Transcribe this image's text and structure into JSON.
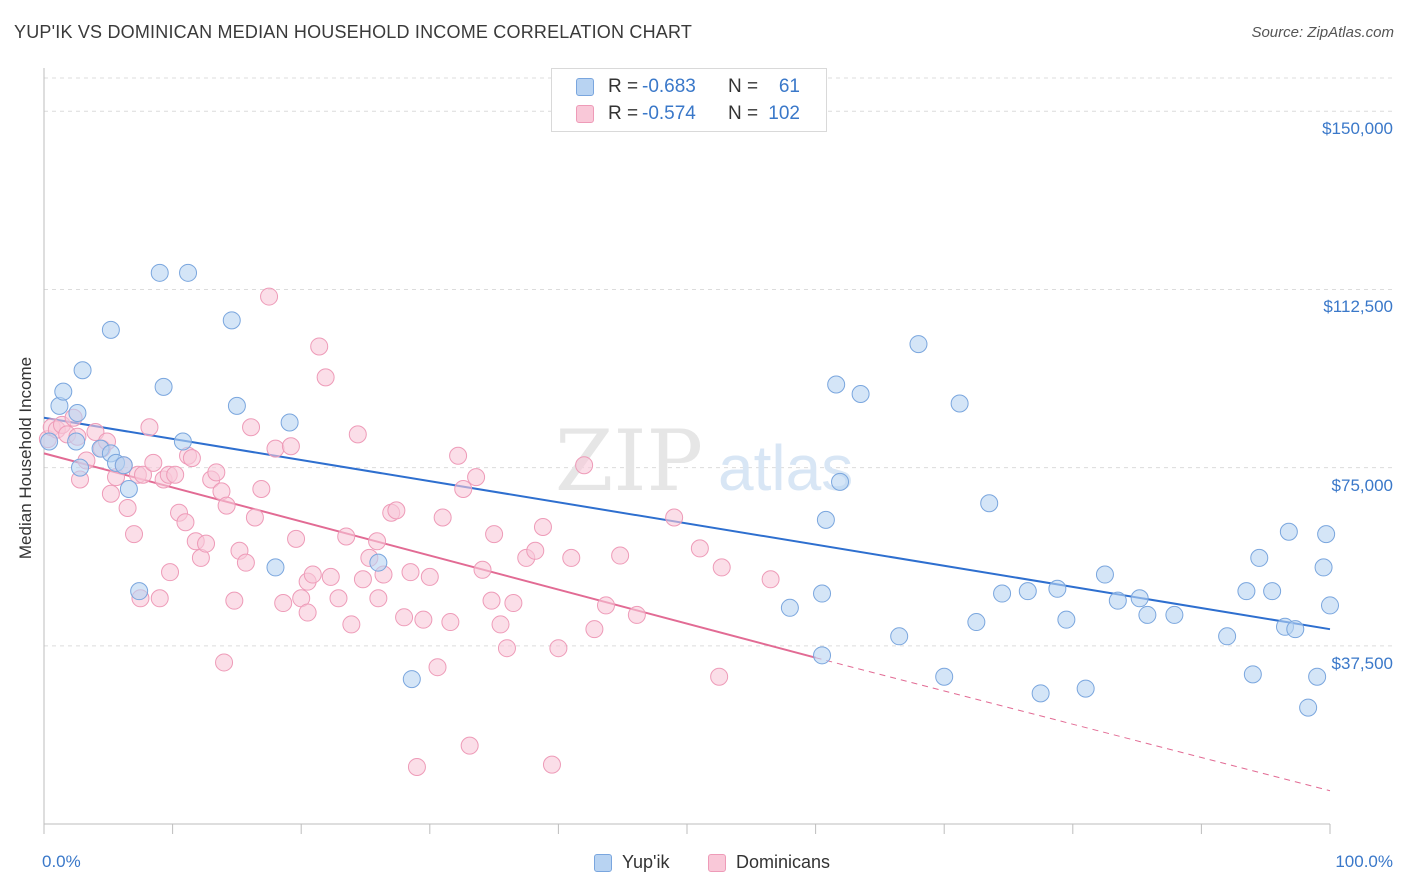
{
  "title": "YUP'IK VS DOMINICAN MEDIAN HOUSEHOLD INCOME CORRELATION CHART",
  "source": "Source: ZipAtlas.com",
  "watermark": {
    "zip": "ZIP",
    "atlas": "atlas"
  },
  "legend": {
    "rows": [
      {
        "r_label": "R =",
        "r_value": "-0.683",
        "n_label": "N =",
        "n_value": "61"
      },
      {
        "r_label": "R =",
        "r_value": "-0.574",
        "n_label": "N =",
        "n_value": "102"
      }
    ]
  },
  "bottom_legend": [
    "Yup'ik",
    "Dominicans"
  ],
  "colors": {
    "yupik_fill": "#b8d3f2",
    "yupik_stroke": "#7aa6de",
    "yupik_line": "#2e6fcf",
    "dom_fill": "#f9c8d8",
    "dom_stroke": "#ee9bb8",
    "dom_line": "#e26b94",
    "grid": "#dcdcdc",
    "axis_text": "#3a78c9"
  },
  "chart_data": {
    "type": "scatter",
    "title": "YUP'IK VS DOMINICAN MEDIAN HOUSEHOLD INCOME CORRELATION CHART",
    "xlabel": "",
    "ylabel": "Median Household Income",
    "xlim": [
      0,
      100
    ],
    "ylim": [
      0,
      157000
    ],
    "x_tick_labels": [
      "0.0%",
      "100.0%"
    ],
    "y_ticks": [
      37500,
      75000,
      112500,
      150000
    ],
    "y_tick_labels": [
      "$37,500",
      "$75,000",
      "$112,500",
      "$150,000"
    ],
    "grid": true,
    "legend_position": "top-center",
    "series": [
      {
        "name": "Yup'ik",
        "trend": {
          "x": [
            0,
            100
          ],
          "y": [
            85500,
            41000
          ],
          "dashed_extension": false
        },
        "points": [
          [
            0.4,
            80500
          ],
          [
            1.2,
            88000
          ],
          [
            1.5,
            91000
          ],
          [
            2.6,
            86500
          ],
          [
            2.5,
            80500
          ],
          [
            3.0,
            95500
          ],
          [
            2.8,
            75000
          ],
          [
            4.4,
            79000
          ],
          [
            5.2,
            78000
          ],
          [
            5.6,
            76000
          ],
          [
            6.6,
            70500
          ],
          [
            6.2,
            75500
          ],
          [
            5.2,
            104000
          ],
          [
            7.4,
            49000
          ],
          [
            9.0,
            116000
          ],
          [
            9.3,
            92000
          ],
          [
            11.2,
            116000
          ],
          [
            14.6,
            106000
          ],
          [
            10.8,
            80500
          ],
          [
            15.0,
            88000
          ],
          [
            18.0,
            54000
          ],
          [
            19.1,
            84500
          ],
          [
            26.0,
            55000
          ],
          [
            28.6,
            30500
          ],
          [
            58.0,
            45500
          ],
          [
            60.5,
            35500
          ],
          [
            60.5,
            48500
          ],
          [
            60.8,
            64000
          ],
          [
            61.6,
            92500
          ],
          [
            61.9,
            72000
          ],
          [
            63.5,
            90500
          ],
          [
            66.5,
            39500
          ],
          [
            68.0,
            101000
          ],
          [
            70.0,
            31000
          ],
          [
            71.2,
            88500
          ],
          [
            72.5,
            42500
          ],
          [
            73.5,
            67500
          ],
          [
            74.5,
            48500
          ],
          [
            76.5,
            49000
          ],
          [
            77.5,
            27500
          ],
          [
            78.8,
            49500
          ],
          [
            79.5,
            43000
          ],
          [
            81.0,
            28500
          ],
          [
            82.5,
            52500
          ],
          [
            83.5,
            47000
          ],
          [
            85.2,
            47500
          ],
          [
            85.8,
            44000
          ],
          [
            87.9,
            44000
          ],
          [
            92.0,
            39500
          ],
          [
            93.5,
            49000
          ],
          [
            94.0,
            31500
          ],
          [
            94.5,
            56000
          ],
          [
            95.5,
            49000
          ],
          [
            96.5,
            41500
          ],
          [
            96.8,
            61500
          ],
          [
            97.3,
            41000
          ],
          [
            98.3,
            24500
          ],
          [
            99.0,
            31000
          ],
          [
            99.5,
            54000
          ],
          [
            99.7,
            61000
          ],
          [
            100.0,
            46000
          ]
        ]
      },
      {
        "name": "Dominicans",
        "trend": {
          "x": [
            0,
            60
          ],
          "y": [
            78000,
            35000
          ],
          "dashed_extension": true,
          "dashed_end": [
            100,
            7000
          ]
        },
        "points": [
          [
            0.3,
            81000
          ],
          [
            0.6,
            83500
          ],
          [
            1.0,
            83000
          ],
          [
            1.4,
            84000
          ],
          [
            1.8,
            82000
          ],
          [
            2.3,
            85500
          ],
          [
            2.6,
            81500
          ],
          [
            2.8,
            72500
          ],
          [
            3.3,
            76500
          ],
          [
            4.0,
            82500
          ],
          [
            4.5,
            79000
          ],
          [
            4.9,
            80500
          ],
          [
            5.2,
            69500
          ],
          [
            5.6,
            73000
          ],
          [
            6.2,
            75500
          ],
          [
            6.5,
            66500
          ],
          [
            7.0,
            61000
          ],
          [
            7.3,
            73500
          ],
          [
            7.7,
            73500
          ],
          [
            8.2,
            83500
          ],
          [
            8.5,
            76000
          ],
          [
            9.0,
            47500
          ],
          [
            9.3,
            72500
          ],
          [
            9.7,
            73500
          ],
          [
            10.2,
            73500
          ],
          [
            10.5,
            65500
          ],
          [
            11.0,
            63500
          ],
          [
            11.2,
            77500
          ],
          [
            11.5,
            77000
          ],
          [
            11.8,
            59500
          ],
          [
            12.2,
            56000
          ],
          [
            12.6,
            59000
          ],
          [
            13.0,
            72500
          ],
          [
            13.4,
            74000
          ],
          [
            13.8,
            70000
          ],
          [
            14.2,
            67000
          ],
          [
            14.8,
            47000
          ],
          [
            15.2,
            57500
          ],
          [
            15.7,
            55000
          ],
          [
            16.1,
            83500
          ],
          [
            16.4,
            64500
          ],
          [
            16.9,
            70500
          ],
          [
            17.5,
            111000
          ],
          [
            18.0,
            79000
          ],
          [
            18.6,
            46500
          ],
          [
            19.2,
            79500
          ],
          [
            19.6,
            60000
          ],
          [
            20.0,
            47500
          ],
          [
            20.5,
            51000
          ],
          [
            20.9,
            52500
          ],
          [
            21.4,
            100500
          ],
          [
            21.9,
            94000
          ],
          [
            22.3,
            52000
          ],
          [
            22.9,
            47500
          ],
          [
            23.5,
            60500
          ],
          [
            23.9,
            42000
          ],
          [
            24.4,
            82000
          ],
          [
            24.8,
            51500
          ],
          [
            25.3,
            56000
          ],
          [
            25.9,
            59500
          ],
          [
            26.4,
            52500
          ],
          [
            27.0,
            65500
          ],
          [
            27.4,
            66000
          ],
          [
            28.0,
            43500
          ],
          [
            28.5,
            53000
          ],
          [
            29.0,
            12000
          ],
          [
            29.5,
            43000
          ],
          [
            30.0,
            52000
          ],
          [
            30.6,
            33000
          ],
          [
            31.0,
            64500
          ],
          [
            31.6,
            42500
          ],
          [
            32.2,
            77500
          ],
          [
            32.6,
            70500
          ],
          [
            33.1,
            16500
          ],
          [
            33.6,
            73000
          ],
          [
            34.1,
            53500
          ],
          [
            34.8,
            47000
          ],
          [
            35.5,
            42000
          ],
          [
            36.0,
            37000
          ],
          [
            36.5,
            46500
          ],
          [
            37.5,
            56000
          ],
          [
            38.2,
            57500
          ],
          [
            38.8,
            62500
          ],
          [
            39.5,
            12500
          ],
          [
            40.0,
            37000
          ],
          [
            41.0,
            56000
          ],
          [
            42.0,
            75500
          ],
          [
            42.8,
            41000
          ],
          [
            43.7,
            46000
          ],
          [
            44.8,
            56500
          ],
          [
            46.1,
            44000
          ],
          [
            49.0,
            64500
          ],
          [
            51.0,
            58000
          ],
          [
            52.5,
            31000
          ],
          [
            52.7,
            54000
          ],
          [
            56.5,
            51500
          ],
          [
            9.8,
            53000
          ],
          [
            14.0,
            34000
          ],
          [
            20.5,
            44500
          ],
          [
            26.0,
            47500
          ],
          [
            35.0,
            61000
          ],
          [
            7.5,
            47500
          ]
        ]
      }
    ]
  }
}
